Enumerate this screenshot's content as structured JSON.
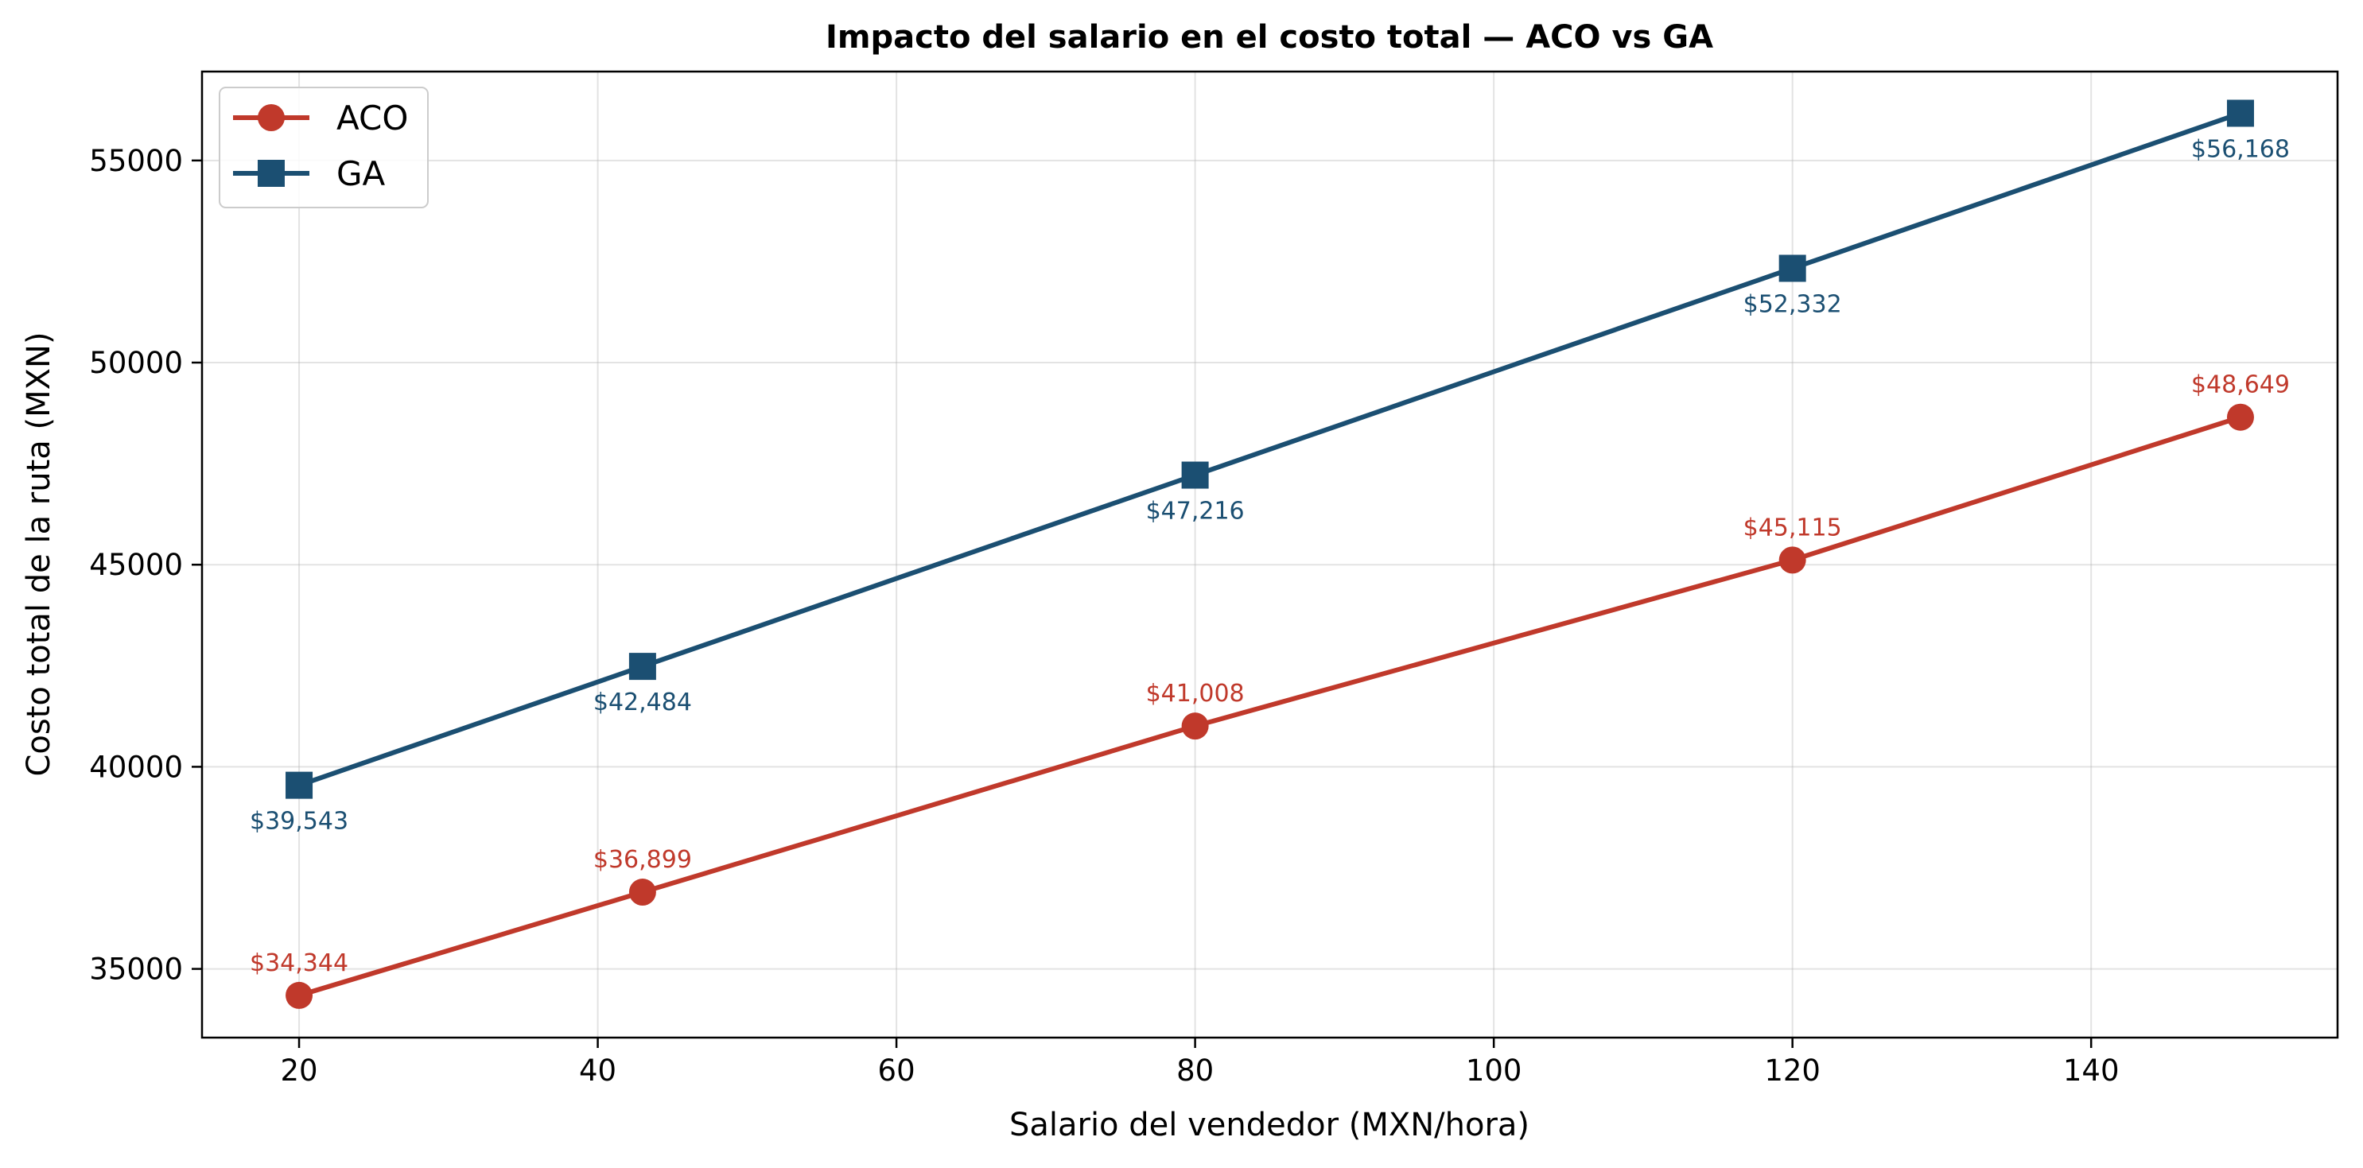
{
  "chart_data": {
    "type": "line",
    "title": "Impacto del salario en el costo total — ACO vs GA",
    "xlabel": "Salario del vendedor (MXN/hora)",
    "ylabel": "Costo total de la ruta (MXN)",
    "xlim": [
      13.5,
      156.5
    ],
    "ylim": [
      33300,
      57200
    ],
    "xticks": [
      20,
      40,
      60,
      80,
      100,
      120,
      140
    ],
    "yticks": [
      35000,
      40000,
      45000,
      50000,
      55000
    ],
    "grid": true,
    "legend_position": "top-left",
    "series": [
      {
        "name": "ACO",
        "color": "#c0392b",
        "marker": "circle",
        "label_placement": "above",
        "x": [
          20,
          43,
          80,
          120,
          150
        ],
        "y": [
          34344,
          36899,
          41008,
          45115,
          48649
        ],
        "labels": [
          "$34,344",
          "$36,899",
          "$41,008",
          "$45,115",
          "$48,649"
        ]
      },
      {
        "name": "GA",
        "color": "#1b4f72",
        "marker": "square",
        "label_placement": "below",
        "x": [
          20,
          43,
          80,
          120,
          150
        ],
        "y": [
          39543,
          42484,
          47216,
          52332,
          56168
        ],
        "labels": [
          "$39,543",
          "$42,484",
          "$47,216",
          "$52,332",
          "$56,168"
        ]
      }
    ]
  }
}
